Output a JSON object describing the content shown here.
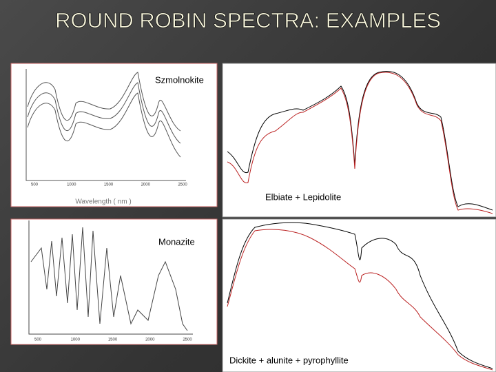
{
  "title": "ROUND ROBIN SPECTRA: EXAMPLES",
  "panels": [
    {
      "label": "Szmolnokite",
      "x_ticks": [
        "500",
        "1000",
        "1500",
        "2000",
        "2500"
      ],
      "x_axis_label": "Wavelength ( nm )"
    },
    {
      "label": "Elbiate + Lepidolite"
    },
    {
      "label": "Monazite",
      "x_ticks": [
        "500",
        "1000",
        "1500",
        "2000",
        "2500"
      ]
    },
    {
      "label": "Dickite + alunite + pyrophyllite"
    }
  ]
}
